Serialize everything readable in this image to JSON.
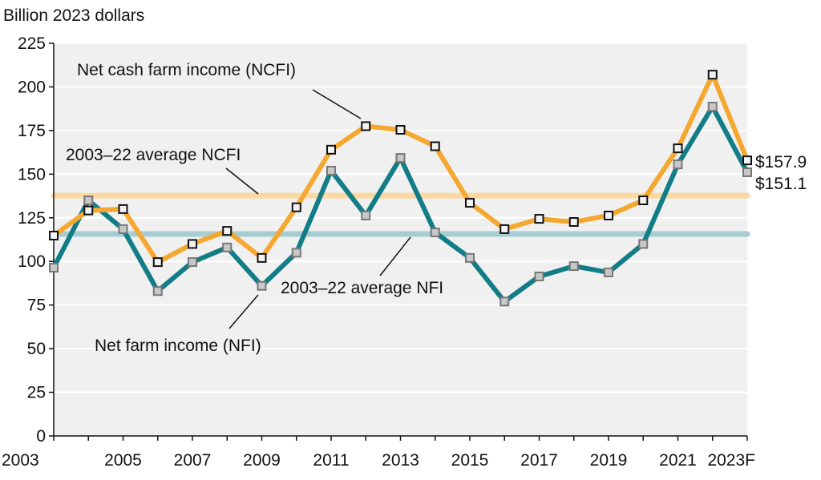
{
  "chart_data": {
    "type": "line",
    "ylabel": "Billion 2023 dollars",
    "ylim": [
      0,
      225
    ],
    "yticks": [
      0,
      25,
      50,
      75,
      100,
      125,
      150,
      175,
      200,
      225
    ],
    "x": [
      2003,
      2004,
      2005,
      2006,
      2007,
      2008,
      2009,
      2010,
      2011,
      2012,
      2013,
      2014,
      2015,
      2016,
      2017,
      2018,
      2019,
      2020,
      2021,
      2022,
      2023
    ],
    "xtick_labels": [
      "2003",
      "2005",
      "2007",
      "2009",
      "2011",
      "2013",
      "2015",
      "2017",
      "2019",
      "2021",
      "2023F"
    ],
    "xtick_values": [
      2003,
      2005,
      2007,
      2009,
      2011,
      2013,
      2015,
      2017,
      2019,
      2021,
      2023
    ],
    "grid": "horizontal",
    "series": [
      {
        "name": "Net cash farm income (NCFI)",
        "color": "#f5a830",
        "values": [
          114.8,
          129.2,
          130.0,
          99.6,
          110.0,
          117.5,
          102.0,
          131.0,
          164.0,
          177.5,
          175.4,
          166.0,
          133.6,
          118.5,
          124.4,
          122.6,
          126.3,
          135.0,
          164.8,
          207.0,
          157.9
        ]
      },
      {
        "name": "Net farm income (NFI)",
        "color": "#127c87",
        "values": [
          96.4,
          135.0,
          118.5,
          83.0,
          99.6,
          108.0,
          86.0,
          105.0,
          152.0,
          126.3,
          159.3,
          116.6,
          102.0,
          77.0,
          91.4,
          97.3,
          93.7,
          110.0,
          155.6,
          188.7,
          151.1
        ]
      }
    ],
    "reference_lines": [
      {
        "name": "2003–22 average NCFI",
        "value": 137.7,
        "color": "#fbd9a0"
      },
      {
        "name": "2003–22 average NFI",
        "value": 115.7,
        "color": "#a6cdd1"
      }
    ],
    "end_labels": [
      "$157.9",
      "$151.1"
    ],
    "plot_background": "#f0f0f0"
  }
}
